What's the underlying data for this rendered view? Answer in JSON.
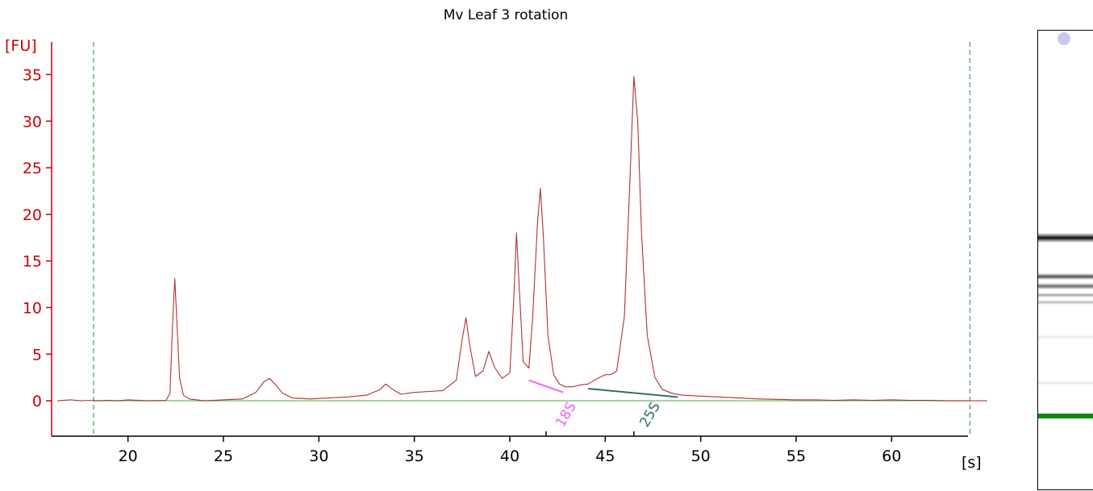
{
  "chart_data": {
    "type": "line",
    "title": "Mv Leaf 3 rotation",
    "ylabel": "[FU]",
    "xlabel": "[s]",
    "xlim": [
      16,
      64
    ],
    "ylim": [
      -3.8,
      38.5
    ],
    "x_ticks": [
      20,
      25,
      30,
      35,
      40,
      45,
      50,
      55,
      60
    ],
    "y_ticks": [
      0,
      5,
      10,
      15,
      20,
      25,
      30,
      35
    ],
    "x_tick_labels": [
      "20",
      "25",
      "30",
      "35",
      "40",
      "45",
      "50",
      "55",
      "60"
    ],
    "y_tick_labels": [
      "0",
      "5",
      "10",
      "15",
      "20",
      "25",
      "30",
      "35"
    ],
    "grid": false,
    "series": [
      {
        "color": "#b03030",
        "x": [
          16.3,
          17.0,
          17.5,
          18.0,
          18.3,
          19.0,
          19.5,
          20.0,
          21.0,
          22.0,
          22.2,
          22.35,
          22.45,
          22.55,
          22.7,
          22.9,
          23.2,
          24.0,
          25.0,
          26.0,
          26.7,
          27.1,
          27.4,
          27.7,
          28.1,
          28.6,
          29.5,
          30.5,
          31.5,
          32.5,
          33.2,
          33.5,
          33.8,
          34.3,
          35.0,
          35.8,
          36.5,
          37.2,
          37.5,
          37.7,
          37.9,
          38.2,
          38.6,
          38.9,
          39.2,
          39.6,
          40.0,
          40.2,
          40.35,
          40.5,
          40.7,
          41.0,
          41.2,
          41.45,
          41.6,
          41.75,
          42.0,
          42.3,
          42.6,
          42.9,
          43.3,
          43.7,
          44.1,
          44.6,
          45.0,
          45.3,
          45.6,
          46.0,
          46.3,
          46.5,
          46.7,
          46.9,
          47.2,
          47.6,
          48.0,
          48.5,
          49.0,
          50.0,
          51.0,
          52.0,
          53.0,
          54.0,
          55.0,
          56.0,
          57.0,
          58.0,
          59.0,
          60.0,
          61.0,
          62.0,
          63.0,
          64.0,
          65.0
        ],
        "y": [
          0.0,
          0.1,
          0.0,
          0.05,
          0.0,
          0.05,
          0.0,
          0.1,
          0.0,
          0.05,
          0.8,
          9.0,
          13.1,
          9.0,
          2.5,
          0.6,
          0.2,
          0.0,
          0.1,
          0.2,
          0.9,
          2.0,
          2.4,
          1.8,
          0.8,
          0.3,
          0.2,
          0.3,
          0.4,
          0.6,
          1.2,
          1.8,
          1.3,
          0.7,
          0.9,
          1.0,
          1.1,
          2.2,
          6.5,
          8.9,
          6.0,
          2.6,
          3.2,
          5.3,
          3.6,
          2.4,
          3.0,
          10.5,
          18.0,
          12.0,
          4.2,
          3.5,
          9.0,
          19.0,
          22.8,
          18.0,
          7.0,
          2.8,
          1.8,
          1.5,
          1.5,
          1.7,
          1.8,
          2.4,
          2.8,
          2.8,
          3.2,
          9.0,
          24.0,
          34.8,
          30.0,
          18.0,
          7.0,
          2.5,
          1.2,
          0.8,
          0.6,
          0.5,
          0.4,
          0.3,
          0.2,
          0.15,
          0.1,
          0.1,
          0.05,
          0.1,
          0.05,
          0.1,
          0.05,
          0.05,
          0.0,
          0.0,
          0.0
        ]
      }
    ],
    "baseline": {
      "y": 0,
      "color": "#7cbf7c"
    },
    "markers": [
      {
        "x": 18.2,
        "color": "#2e8b2e",
        "style": "dashed"
      },
      {
        "x": 64.1,
        "color": "#2e8b2e",
        "style": "dashed"
      }
    ],
    "annotations": [
      {
        "label": "18S",
        "color": "#ee66ee",
        "x_start": 41.0,
        "y_start": 2.2,
        "x_end": 42.8,
        "y_end": 0.9,
        "text_x": 42.8
      },
      {
        "label": "25S",
        "color": "#2f6f6f",
        "x_start": 44.1,
        "y_start": 1.3,
        "x_end": 48.8,
        "y_end": 0.4,
        "text_x": 47.2
      }
    ],
    "minor_x_ticks": [
      41.9,
      46.5
    ],
    "gel": {
      "bands": [
        {
          "pos": 0.45,
          "darkness": 0.95,
          "thickness": 6
        },
        {
          "pos": 0.535,
          "darkness": 0.7,
          "thickness": 4
        },
        {
          "pos": 0.555,
          "darkness": 0.6,
          "thickness": 4
        },
        {
          "pos": 0.575,
          "darkness": 0.35,
          "thickness": 3
        },
        {
          "pos": 0.59,
          "darkness": 0.25,
          "thickness": 3
        },
        {
          "pos": 0.665,
          "darkness": 0.08,
          "thickness": 3
        },
        {
          "pos": 0.765,
          "darkness": 0.1,
          "thickness": 3
        }
      ],
      "marker_band": {
        "pos": 0.838,
        "color": "#0a8a0a"
      },
      "marker_dot_color": "#c8c8f0"
    }
  }
}
